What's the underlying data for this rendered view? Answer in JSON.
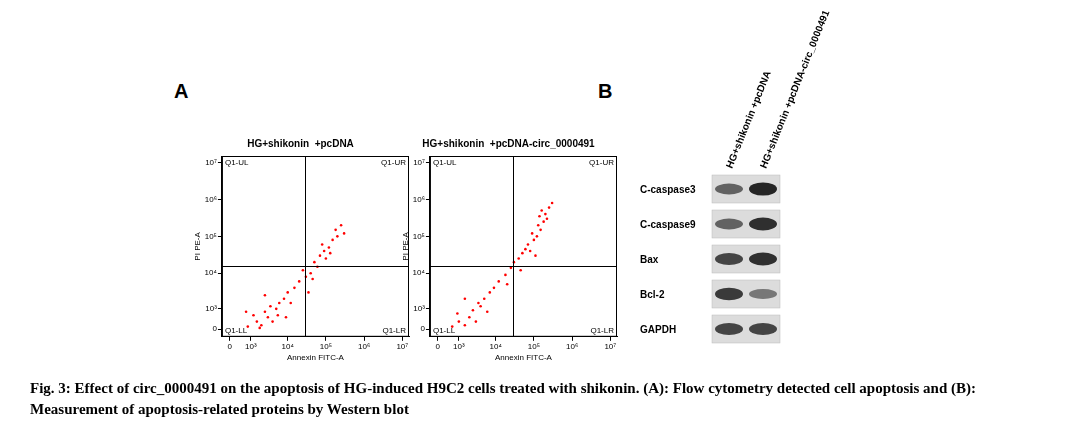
{
  "panel_labels": [
    "A",
    "B"
  ],
  "caption": "Fig. 3: Effect of circ_0000491 on the apoptosis of HG-induced H9C2 cells treated with shikonin. (A): Flow cytometry detected cell apoptosis and (B): Measurement of apoptosis-related proteins by Western blot",
  "chart_data": [
    {
      "type": "scatter",
      "title": "HG+shikonin  +pcDNA",
      "x_label": "Annexin FITC-A",
      "y_label": "PI PE-A",
      "log": true,
      "grid": false,
      "color": "#ff0000",
      "xlim": [
        -300,
        15000000
      ],
      "ylim": [
        -300,
        15000000
      ],
      "xticks": [
        0,
        {
          "value": 1000,
          "label": "10³"
        },
        {
          "value": 10000,
          "label": "10⁴"
        },
        {
          "value": 100000,
          "label": "10⁵"
        },
        {
          "value": 1000000,
          "label": "10⁶"
        },
        {
          "value": 10000000,
          "label": "10⁷"
        }
      ],
      "yticks": [
        0,
        {
          "value": 1000,
          "label": "10³"
        },
        {
          "value": 10000,
          "label": "10⁴"
        },
        {
          "value": 100000,
          "label": "10⁵"
        },
        {
          "value": 1000000,
          "label": "10⁶"
        },
        {
          "value": 10000000,
          "label": "10⁷"
        }
      ],
      "gate": {
        "x": 28000,
        "y": 16000
      },
      "quadrant_labels": {
        "UL": "Q1-UL",
        "UR": "Q1-UR",
        "LL": "Q1-LL",
        "LR": "Q1-LR"
      },
      "x": [
        800,
        1500,
        2000,
        3000,
        2500,
        4000,
        5000,
        1200,
        6000,
        8000,
        3500,
        10000,
        15000,
        20000,
        30000,
        40000,
        25000,
        50000,
        70000,
        60000,
        90000,
        120000,
        150000,
        100000,
        80000,
        200000,
        180000,
        250000,
        45000,
        35000,
        700,
        1800,
        5500,
        12000,
        9000,
        300000,
        130000,
        2500
      ],
      "values": [
        100,
        300,
        150,
        500,
        800,
        300,
        1000,
        600,
        1500,
        2000,
        1200,
        3000,
        4000,
        6000,
        8000,
        10000,
        12000,
        20000,
        30000,
        15000,
        40000,
        50000,
        80000,
        25000,
        60000,
        100000,
        150000,
        200000,
        7000,
        3000,
        800,
        50,
        600,
        1500,
        500,
        120000,
        35000,
        2500
      ]
    },
    {
      "type": "scatter",
      "title": "HG+shikonin  +pcDNA-circ_0000491",
      "x_label": "Annexin FITC-A",
      "y_label": "PI PE-A",
      "log": true,
      "grid": false,
      "color": "#ff0000",
      "xlim": [
        -300,
        15000000
      ],
      "ylim": [
        -300,
        15000000
      ],
      "xticks": [
        0,
        {
          "value": 1000,
          "label": "10³"
        },
        {
          "value": 10000,
          "label": "10⁴"
        },
        {
          "value": 100000,
          "label": "10⁵"
        },
        {
          "value": 1000000,
          "label": "10⁶"
        },
        {
          "value": 10000000,
          "label": "10⁷"
        }
      ],
      "yticks": [
        0,
        {
          "value": 1000,
          "label": "10³"
        },
        {
          "value": 10000,
          "label": "10⁴"
        },
        {
          "value": 100000,
          "label": "10⁵"
        },
        {
          "value": 1000000,
          "label": "10⁶"
        },
        {
          "value": 10000000,
          "label": "10⁷"
        }
      ],
      "gate": {
        "x": 28000,
        "y": 16000
      },
      "quadrant_labels": {
        "UL": "Q1-UL",
        "UR": "Q1-UR",
        "LL": "Q1-LL",
        "LR": "Q1-LR"
      },
      "x": [
        600,
        1000,
        1500,
        2000,
        2500,
        3000,
        4000,
        900,
        5000,
        7000,
        3500,
        9000,
        12000,
        18000,
        25000,
        30000,
        40000,
        50000,
        60000,
        70000,
        80000,
        100000,
        120000,
        150000,
        180000,
        200000,
        160000,
        130000,
        90000,
        220000,
        250000,
        110000,
        45000,
        20000,
        1500,
        6000,
        300000,
        140000
      ],
      "values": [
        100,
        300,
        150,
        500,
        900,
        300,
        1200,
        700,
        2000,
        3000,
        1500,
        4000,
        6000,
        9000,
        14000,
        20000,
        25000,
        35000,
        45000,
        60000,
        40000,
        80000,
        100000,
        150000,
        250000,
        400000,
        500000,
        200000,
        120000,
        300000,
        600000,
        30000,
        12000,
        5000,
        2000,
        800,
        800000,
        350000
      ]
    }
  ],
  "western_blot": {
    "lanes": [
      "HG+shikonin  +pcDNA",
      "HG+shikonin  +pcDNA-circ_0000491"
    ],
    "proteins": [
      {
        "name": "C-caspase3",
        "intensity": [
          0.6,
          0.9
        ]
      },
      {
        "name": "C-caspase9",
        "intensity": [
          0.6,
          0.85
        ]
      },
      {
        "name": "Bax",
        "intensity": [
          0.75,
          0.85
        ]
      },
      {
        "name": "Bcl-2",
        "intensity": [
          0.8,
          0.5
        ]
      },
      {
        "name": "GAPDH",
        "intensity": [
          0.75,
          0.75
        ]
      }
    ]
  }
}
